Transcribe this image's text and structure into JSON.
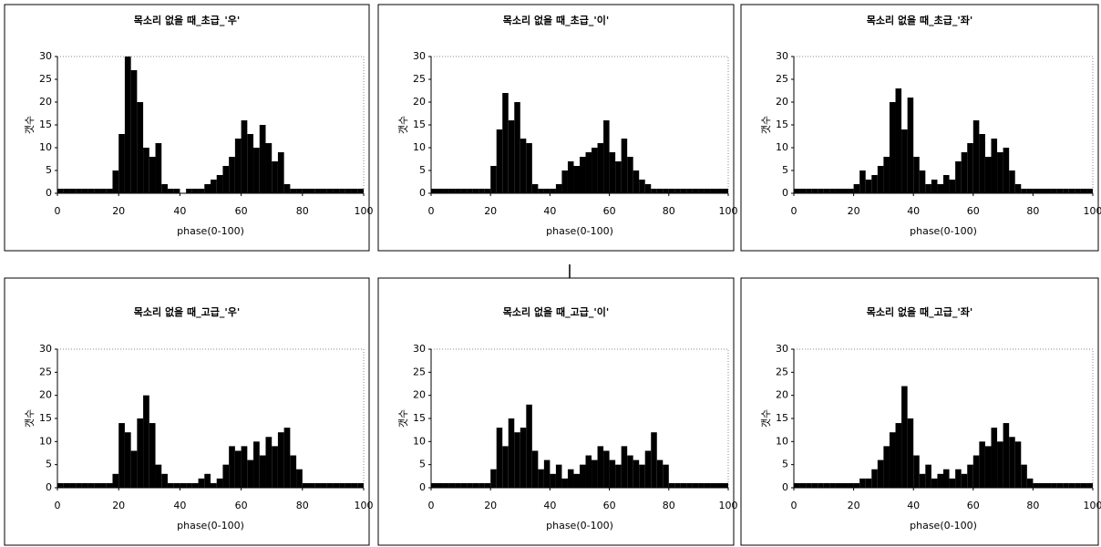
{
  "chart_data": [
    {
      "type": "histogram",
      "title": "목소리 없을 때_초급_'우'",
      "x_label": "phase(0-100)",
      "y_label": "갯수",
      "color": "#000000",
      "bins": [
        0,
        2,
        4,
        6,
        8,
        10,
        12,
        14,
        16,
        18,
        20,
        22,
        24,
        26,
        28,
        30,
        32,
        34,
        36,
        38,
        40,
        42,
        44,
        46,
        48,
        50,
        52,
        54,
        56,
        58,
        60,
        62,
        64,
        66,
        68,
        70,
        72,
        74,
        76,
        78,
        80,
        82,
        84,
        86,
        88,
        90,
        92,
        94,
        96,
        98,
        100
      ],
      "values": [
        1,
        1,
        1,
        1,
        1,
        1,
        1,
        1,
        1,
        5,
        13,
        30,
        27,
        20,
        10,
        8,
        11,
        2,
        1,
        1,
        0,
        1,
        1,
        1,
        2,
        3,
        4,
        6,
        8,
        12,
        16,
        13,
        10,
        15,
        11,
        7,
        9,
        2,
        1,
        1,
        1,
        1,
        1,
        1,
        1,
        1,
        1,
        1,
        1,
        1
      ],
      "xlim": [
        0,
        100
      ],
      "ylim": [
        0,
        30
      ],
      "xticks": [
        0,
        20,
        40,
        60,
        80,
        100
      ],
      "yticks": [
        0,
        5,
        10,
        15,
        20,
        25,
        30
      ]
    },
    {
      "type": "histogram",
      "title": "목소리 없을 때_초급_'이'",
      "x_label": "phase(0-100)",
      "y_label": "갯수",
      "color": "#000000",
      "bins": [
        0,
        2,
        4,
        6,
        8,
        10,
        12,
        14,
        16,
        18,
        20,
        22,
        24,
        26,
        28,
        30,
        32,
        34,
        36,
        38,
        40,
        42,
        44,
        46,
        48,
        50,
        52,
        54,
        56,
        58,
        60,
        62,
        64,
        66,
        68,
        70,
        72,
        74,
        76,
        78,
        80,
        82,
        84,
        86,
        88,
        90,
        92,
        94,
        96,
        98,
        100
      ],
      "values": [
        1,
        1,
        1,
        1,
        1,
        1,
        1,
        1,
        1,
        1,
        6,
        14,
        22,
        16,
        20,
        12,
        11,
        2,
        1,
        1,
        1,
        2,
        5,
        7,
        6,
        8,
        9,
        10,
        11,
        16,
        9,
        7,
        12,
        8,
        5,
        3,
        2,
        1,
        1,
        1,
        1,
        1,
        1,
        1,
        1,
        1,
        1,
        1,
        1,
        1
      ],
      "xlim": [
        0,
        100
      ],
      "ylim": [
        0,
        30
      ],
      "xticks": [
        0,
        20,
        40,
        60,
        80,
        100
      ],
      "yticks": [
        0,
        5,
        10,
        15,
        20,
        25,
        30
      ]
    },
    {
      "type": "histogram",
      "title": "목소리 없을 때_초급_'좌'",
      "x_label": "phase(0-100)",
      "y_label": "갯수",
      "color": "#000000",
      "bins": [
        0,
        2,
        4,
        6,
        8,
        10,
        12,
        14,
        16,
        18,
        20,
        22,
        24,
        26,
        28,
        30,
        32,
        34,
        36,
        38,
        40,
        42,
        44,
        46,
        48,
        50,
        52,
        54,
        56,
        58,
        60,
        62,
        64,
        66,
        68,
        70,
        72,
        74,
        76,
        78,
        80,
        82,
        84,
        86,
        88,
        90,
        92,
        94,
        96,
        98,
        100
      ],
      "values": [
        1,
        1,
        1,
        1,
        1,
        1,
        1,
        1,
        1,
        1,
        2,
        5,
        3,
        4,
        6,
        8,
        20,
        23,
        14,
        21,
        8,
        5,
        2,
        3,
        2,
        4,
        3,
        7,
        9,
        11,
        16,
        13,
        8,
        12,
        9,
        10,
        5,
        2,
        1,
        1,
        1,
        1,
        1,
        1,
        1,
        1,
        1,
        1,
        1,
        1
      ],
      "xlim": [
        0,
        100
      ],
      "ylim": [
        0,
        30
      ],
      "xticks": [
        0,
        20,
        40,
        60,
        80,
        100
      ],
      "yticks": [
        0,
        5,
        10,
        15,
        20,
        25,
        30
      ]
    },
    {
      "type": "histogram",
      "title": "목소리 없을 때_고급_'우'",
      "x_label": "phase(0-100)",
      "y_label": "갯수",
      "color": "#000000",
      "bins": [
        0,
        2,
        4,
        6,
        8,
        10,
        12,
        14,
        16,
        18,
        20,
        22,
        24,
        26,
        28,
        30,
        32,
        34,
        36,
        38,
        40,
        42,
        44,
        46,
        48,
        50,
        52,
        54,
        56,
        58,
        60,
        62,
        64,
        66,
        68,
        70,
        72,
        74,
        76,
        78,
        80,
        82,
        84,
        86,
        88,
        90,
        92,
        94,
        96,
        98,
        100
      ],
      "values": [
        1,
        1,
        1,
        1,
        1,
        1,
        1,
        1,
        1,
        3,
        14,
        12,
        8,
        15,
        20,
        14,
        5,
        3,
        1,
        1,
        1,
        1,
        1,
        2,
        3,
        1,
        2,
        5,
        9,
        8,
        9,
        6,
        10,
        7,
        11,
        9,
        12,
        13,
        7,
        4,
        1,
        1,
        1,
        1,
        1,
        1,
        1,
        1,
        1,
        1
      ],
      "xlim": [
        0,
        100
      ],
      "ylim": [
        0,
        30
      ],
      "xticks": [
        0,
        20,
        40,
        60,
        80,
        100
      ],
      "yticks": [
        0,
        5,
        10,
        15,
        20,
        25,
        30
      ]
    },
    {
      "type": "histogram",
      "title": "목소리 없을 때_고급_'이'",
      "x_label": "phase(0-100)",
      "y_label": "갯수",
      "color": "#000000",
      "bins": [
        0,
        2,
        4,
        6,
        8,
        10,
        12,
        14,
        16,
        18,
        20,
        22,
        24,
        26,
        28,
        30,
        32,
        34,
        36,
        38,
        40,
        42,
        44,
        46,
        48,
        50,
        52,
        54,
        56,
        58,
        60,
        62,
        64,
        66,
        68,
        70,
        72,
        74,
        76,
        78,
        80,
        82,
        84,
        86,
        88,
        90,
        92,
        94,
        96,
        98,
        100
      ],
      "values": [
        1,
        1,
        1,
        1,
        1,
        1,
        1,
        1,
        1,
        1,
        4,
        13,
        9,
        15,
        12,
        13,
        18,
        8,
        4,
        6,
        3,
        5,
        2,
        4,
        3,
        5,
        7,
        6,
        9,
        8,
        6,
        5,
        9,
        7,
        6,
        5,
        8,
        12,
        6,
        5,
        1,
        1,
        1,
        1,
        1,
        1,
        1,
        1,
        1,
        1
      ],
      "xlim": [
        0,
        100
      ],
      "ylim": [
        0,
        30
      ],
      "xticks": [
        0,
        20,
        40,
        60,
        80,
        100
      ],
      "yticks": [
        0,
        5,
        10,
        15,
        20,
        25,
        30
      ]
    },
    {
      "type": "histogram",
      "title": "목소리 없을 때_고급_'좌'",
      "x_label": "phase(0-100)",
      "y_label": "갯수",
      "color": "#000000",
      "bins": [
        0,
        2,
        4,
        6,
        8,
        10,
        12,
        14,
        16,
        18,
        20,
        22,
        24,
        26,
        28,
        30,
        32,
        34,
        36,
        38,
        40,
        42,
        44,
        46,
        48,
        50,
        52,
        54,
        56,
        58,
        60,
        62,
        64,
        66,
        68,
        70,
        72,
        74,
        76,
        78,
        80,
        82,
        84,
        86,
        88,
        90,
        92,
        94,
        96,
        98,
        100
      ],
      "values": [
        1,
        1,
        1,
        1,
        1,
        1,
        1,
        1,
        1,
        1,
        1,
        2,
        2,
        4,
        6,
        9,
        12,
        14,
        22,
        15,
        7,
        3,
        5,
        2,
        3,
        4,
        2,
        4,
        3,
        5,
        7,
        10,
        9,
        13,
        10,
        14,
        11,
        10,
        5,
        2,
        1,
        1,
        1,
        1,
        1,
        1,
        1,
        1,
        1,
        1
      ],
      "xlim": [
        0,
        100
      ],
      "ylim": [
        0,
        30
      ],
      "xticks": [
        0,
        20,
        40,
        60,
        80,
        100
      ],
      "yticks": [
        0,
        5,
        10,
        15,
        20,
        25,
        30
      ]
    }
  ]
}
